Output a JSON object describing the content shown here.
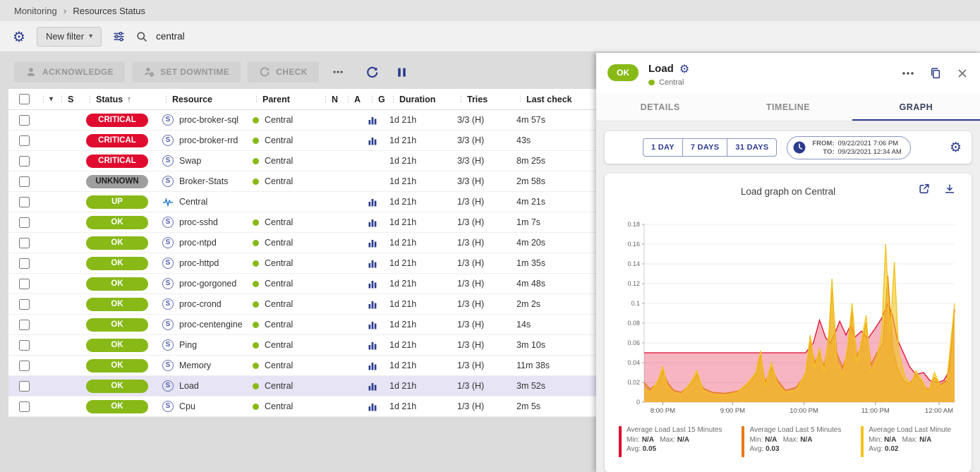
{
  "breadcrumb": {
    "items": [
      "Monitoring",
      "Resources Status"
    ]
  },
  "filter_bar": {
    "new_filter_label": "New filter",
    "search_value": "central"
  },
  "actions": {
    "acknowledge_label": "ACKNOWLEDGE",
    "set_downtime_label": "SET DOWNTIME",
    "check_label": "CHECK"
  },
  "colors": {
    "brand": "#2b3c8e",
    "critical": "#e00b2f",
    "ok": "#88b917",
    "unknown": "#9e9e9e"
  },
  "table": {
    "columns": {
      "s": "S",
      "status": "Status",
      "resource": "Resource",
      "parent": "Parent",
      "n": "N",
      "a": "A",
      "g": "G",
      "duration": "Duration",
      "tries": "Tries",
      "last_check": "Last check"
    },
    "rows": [
      {
        "status": "CRITICAL",
        "status_type": "critical",
        "icon": "service",
        "resource": "proc-broker-sql",
        "parent": "Central",
        "graph": true,
        "duration": "1d 21h",
        "tries": "3/3 (H)",
        "last_check": "4m 57s",
        "selected": false
      },
      {
        "status": "CRITICAL",
        "status_type": "critical",
        "icon": "service",
        "resource": "proc-broker-rrd",
        "parent": "Central",
        "graph": true,
        "duration": "1d 21h",
        "tries": "3/3 (H)",
        "last_check": "43s",
        "selected": false
      },
      {
        "status": "CRITICAL",
        "status_type": "critical",
        "icon": "service",
        "resource": "Swap",
        "parent": "Central",
        "graph": false,
        "duration": "1d 21h",
        "tries": "3/3 (H)",
        "last_check": "8m 25s",
        "selected": false
      },
      {
        "status": "UNKNOWN",
        "status_type": "unknown",
        "icon": "service",
        "resource": "Broker-Stats",
        "parent": "Central",
        "graph": false,
        "duration": "1d 21h",
        "tries": "3/3 (H)",
        "last_check": "2m 58s",
        "selected": false
      },
      {
        "status": "UP",
        "status_type": "up",
        "icon": "host",
        "resource": "Central",
        "parent": "",
        "graph": true,
        "duration": "1d 21h",
        "tries": "1/3 (H)",
        "last_check": "4m 21s",
        "selected": false
      },
      {
        "status": "OK",
        "status_type": "ok",
        "icon": "service",
        "resource": "proc-sshd",
        "parent": "Central",
        "graph": true,
        "duration": "1d 21h",
        "tries": "1/3 (H)",
        "last_check": "1m 7s",
        "selected": false
      },
      {
        "status": "OK",
        "status_type": "ok",
        "icon": "service",
        "resource": "proc-ntpd",
        "parent": "Central",
        "graph": true,
        "duration": "1d 21h",
        "tries": "1/3 (H)",
        "last_check": "4m 20s",
        "selected": false
      },
      {
        "status": "OK",
        "status_type": "ok",
        "icon": "service",
        "resource": "proc-httpd",
        "parent": "Central",
        "graph": true,
        "duration": "1d 21h",
        "tries": "1/3 (H)",
        "last_check": "1m 35s",
        "selected": false
      },
      {
        "status": "OK",
        "status_type": "ok",
        "icon": "service",
        "resource": "proc-gorgoned",
        "parent": "Central",
        "graph": true,
        "duration": "1d 21h",
        "tries": "1/3 (H)",
        "last_check": "4m 48s",
        "selected": false
      },
      {
        "status": "OK",
        "status_type": "ok",
        "icon": "service",
        "resource": "proc-crond",
        "parent": "Central",
        "graph": true,
        "duration": "1d 21h",
        "tries": "1/3 (H)",
        "last_check": "2m 2s",
        "selected": false
      },
      {
        "status": "OK",
        "status_type": "ok",
        "icon": "service",
        "resource": "proc-centengine",
        "parent": "Central",
        "graph": true,
        "duration": "1d 21h",
        "tries": "1/3 (H)",
        "last_check": "14s",
        "selected": false
      },
      {
        "status": "OK",
        "status_type": "ok",
        "icon": "service",
        "resource": "Ping",
        "parent": "Central",
        "graph": true,
        "duration": "1d 21h",
        "tries": "1/3 (H)",
        "last_check": "3m 10s",
        "selected": false
      },
      {
        "status": "OK",
        "status_type": "ok",
        "icon": "service",
        "resource": "Memory",
        "parent": "Central",
        "graph": true,
        "duration": "1d 21h",
        "tries": "1/3 (H)",
        "last_check": "11m 38s",
        "selected": false
      },
      {
        "status": "OK",
        "status_type": "ok",
        "icon": "service",
        "resource": "Load",
        "parent": "Central",
        "graph": true,
        "duration": "1d 21h",
        "tries": "1/3 (H)",
        "last_check": "3m 52s",
        "selected": true
      },
      {
        "status": "OK",
        "status_type": "ok",
        "icon": "service",
        "resource": "Cpu",
        "parent": "Central",
        "graph": true,
        "duration": "1d 21h",
        "tries": "1/3 (H)",
        "last_check": "2m 5s",
        "selected": false
      }
    ]
  },
  "panel": {
    "status_badge": "OK",
    "title": "Load",
    "subtitle": "Central",
    "tabs": [
      "DETAILS",
      "TIMELINE",
      "GRAPH"
    ],
    "active_tab": "GRAPH",
    "range_buttons": [
      "1 DAY",
      "7 DAYS",
      "31 DAYS"
    ],
    "from_label": "FROM:",
    "from_value": "09/22/2021 7:06 PM",
    "to_label": "TO:",
    "to_value": "09/23/2021 12:34 AM"
  },
  "legend_labels": {
    "min": "Min:",
    "max": "Max:",
    "avg": "Avg:"
  },
  "chart_data": {
    "type": "area",
    "title": "Load graph on Central",
    "ylim": [
      0,
      0.18
    ],
    "y_ticks": [
      0,
      0.02,
      0.04,
      0.06,
      0.08,
      0.1,
      0.12,
      0.14,
      0.16,
      0.18
    ],
    "x_ticks": [
      {
        "label": "8:00 PM",
        "pos": 0.06
      },
      {
        "label": "9:00 PM",
        "pos": 0.285
      },
      {
        "label": "10:00 PM",
        "pos": 0.515
      },
      {
        "label": "11:00 PM",
        "pos": 0.745
      },
      {
        "label": "12:00 AM",
        "pos": 0.95
      }
    ],
    "series": [
      {
        "name": "Average Load Last 15 Minutes",
        "color": "#e00b2f",
        "fill_opacity": 0.3,
        "min": "N/A",
        "max": "N/A",
        "avg": "0.05",
        "points": [
          [
            0,
            0.05
          ],
          [
            0.52,
            0.05
          ],
          [
            0.545,
            0.06
          ],
          [
            0.565,
            0.083
          ],
          [
            0.585,
            0.065
          ],
          [
            0.6,
            0.06
          ],
          [
            0.615,
            0.07
          ],
          [
            0.63,
            0.082
          ],
          [
            0.65,
            0.068
          ],
          [
            0.665,
            0.078
          ],
          [
            0.68,
            0.066
          ],
          [
            0.7,
            0.072
          ],
          [
            0.72,
            0.064
          ],
          [
            0.745,
            0.075
          ],
          [
            0.765,
            0.085
          ],
          [
            0.785,
            0.1
          ],
          [
            0.8,
            0.088
          ],
          [
            0.815,
            0.064
          ],
          [
            0.835,
            0.05
          ],
          [
            0.855,
            0.036
          ],
          [
            0.875,
            0.028
          ],
          [
            0.9,
            0.03
          ],
          [
            0.92,
            0.022
          ],
          [
            0.945,
            0.02
          ],
          [
            0.965,
            0.022
          ],
          [
            0.98,
            0.03
          ],
          [
            1,
            0.094
          ]
        ]
      },
      {
        "name": "Average Load Last 5 Minutes",
        "color": "#e87a10",
        "fill_opacity": 0.5,
        "min": "N/A",
        "max": "N/A",
        "avg": "0.03",
        "points": [
          [
            0,
            0.02
          ],
          [
            0.02,
            0.013
          ],
          [
            0.045,
            0.02
          ],
          [
            0.06,
            0.032
          ],
          [
            0.075,
            0.02
          ],
          [
            0.095,
            0.012
          ],
          [
            0.12,
            0.01
          ],
          [
            0.15,
            0.018
          ],
          [
            0.17,
            0.028
          ],
          [
            0.19,
            0.014
          ],
          [
            0.22,
            0.01
          ],
          [
            0.26,
            0.009
          ],
          [
            0.3,
            0.011
          ],
          [
            0.335,
            0.018
          ],
          [
            0.36,
            0.028
          ],
          [
            0.375,
            0.048
          ],
          [
            0.39,
            0.02
          ],
          [
            0.41,
            0.035
          ],
          [
            0.43,
            0.022
          ],
          [
            0.455,
            0.012
          ],
          [
            0.49,
            0.015
          ],
          [
            0.52,
            0.028
          ],
          [
            0.535,
            0.062
          ],
          [
            0.55,
            0.04
          ],
          [
            0.565,
            0.05
          ],
          [
            0.58,
            0.036
          ],
          [
            0.595,
            0.065
          ],
          [
            0.605,
            0.118
          ],
          [
            0.62,
            0.05
          ],
          [
            0.64,
            0.035
          ],
          [
            0.655,
            0.05
          ],
          [
            0.67,
            0.092
          ],
          [
            0.685,
            0.046
          ],
          [
            0.7,
            0.058
          ],
          [
            0.715,
            0.08
          ],
          [
            0.73,
            0.038
          ],
          [
            0.75,
            0.05
          ],
          [
            0.77,
            0.06
          ],
          [
            0.785,
            0.128
          ],
          [
            0.8,
            0.055
          ],
          [
            0.815,
            0.035
          ],
          [
            0.835,
            0.022
          ],
          [
            0.855,
            0.018
          ],
          [
            0.875,
            0.028
          ],
          [
            0.895,
            0.02
          ],
          [
            0.915,
            0.012
          ],
          [
            0.935,
            0.025
          ],
          [
            0.955,
            0.018
          ],
          [
            0.975,
            0.022
          ],
          [
            1,
            0.092
          ]
        ]
      },
      {
        "name": "Average Load Last Minute",
        "color": "#f6c columnName",
        "fill_opacity": 0.6,
        "min": "N/A",
        "max": "N/A",
        "avg": "0.02",
        "points": [
          [
            0,
            0.014
          ],
          [
            0.02,
            0.01
          ],
          [
            0.045,
            0.022
          ],
          [
            0.06,
            0.036
          ],
          [
            0.075,
            0.016
          ],
          [
            0.095,
            0.01
          ],
          [
            0.12,
            0.008
          ],
          [
            0.15,
            0.02
          ],
          [
            0.17,
            0.032
          ],
          [
            0.19,
            0.012
          ],
          [
            0.22,
            0.008
          ],
          [
            0.26,
            0.007
          ],
          [
            0.3,
            0.01
          ],
          [
            0.335,
            0.02
          ],
          [
            0.36,
            0.03
          ],
          [
            0.375,
            0.052
          ],
          [
            0.39,
            0.016
          ],
          [
            0.41,
            0.04
          ],
          [
            0.43,
            0.018
          ],
          [
            0.455,
            0.01
          ],
          [
            0.49,
            0.012
          ],
          [
            0.52,
            0.03
          ],
          [
            0.535,
            0.068
          ],
          [
            0.55,
            0.035
          ],
          [
            0.565,
            0.055
          ],
          [
            0.58,
            0.03
          ],
          [
            0.595,
            0.07
          ],
          [
            0.605,
            0.125
          ],
          [
            0.62,
            0.042
          ],
          [
            0.64,
            0.028
          ],
          [
            0.655,
            0.055
          ],
          [
            0.67,
            0.1
          ],
          [
            0.685,
            0.04
          ],
          [
            0.7,
            0.062
          ],
          [
            0.715,
            0.088
          ],
          [
            0.73,
            0.03
          ],
          [
            0.75,
            0.045
          ],
          [
            0.765,
            0.07
          ],
          [
            0.778,
            0.16
          ],
          [
            0.792,
            0.07
          ],
          [
            0.806,
            0.142
          ],
          [
            0.82,
            0.05
          ],
          [
            0.84,
            0.026
          ],
          [
            0.86,
            0.018
          ],
          [
            0.875,
            0.032
          ],
          [
            0.895,
            0.022
          ],
          [
            0.915,
            0.01
          ],
          [
            0.935,
            0.03
          ],
          [
            0.955,
            0.016
          ],
          [
            0.975,
            0.02
          ],
          [
            1,
            0.1
          ]
        ]
      }
    ]
  }
}
